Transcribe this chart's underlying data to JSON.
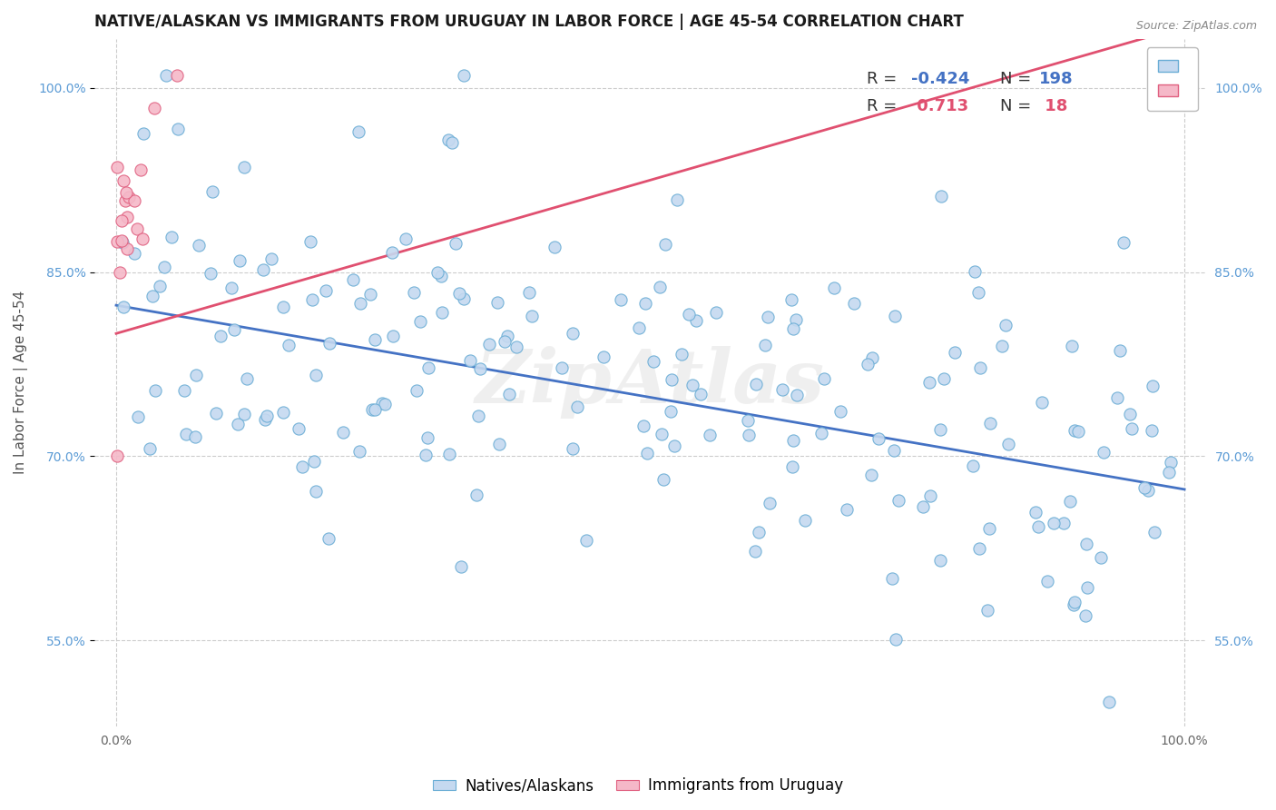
{
  "title": "NATIVE/ALASKAN VS IMMIGRANTS FROM URUGUAY IN LABOR FORCE | AGE 45-54 CORRELATION CHART",
  "source": "Source: ZipAtlas.com",
  "ylabel": "In Labor Force | Age 45-54",
  "R_blue": -0.424,
  "N_blue": 198,
  "R_pink": 0.713,
  "N_pink": 18,
  "legend_labels": [
    "Natives/Alaskans",
    "Immigrants from Uruguay"
  ],
  "blue_color": "#c5d9f0",
  "pink_color": "#f5b8c8",
  "blue_edge_color": "#6aadd5",
  "pink_edge_color": "#e06080",
  "blue_line_color": "#4472c4",
  "pink_line_color": "#e05070",
  "legend_R_blue_color": "#4472c4",
  "legend_R_pink_color": "#e05070",
  "legend_N_blue_color": "#222222",
  "legend_N_pink_color": "#222222",
  "xlim": [
    -0.02,
    1.02
  ],
  "ylim": [
    0.48,
    1.04
  ],
  "yticks": [
    0.55,
    0.7,
    0.85,
    1.0
  ],
  "ytick_labels": [
    "55.0%",
    "70.0%",
    "85.0%",
    "100.0%"
  ],
  "xticks": [
    0.0,
    1.0
  ],
  "xtick_labels": [
    "0.0%",
    "100.0%"
  ],
  "background_color": "#ffffff",
  "grid_color": "#cccccc",
  "watermark": "ZipAtlas",
  "blue_line_x": [
    0.0,
    1.0
  ],
  "blue_line_y": [
    0.823,
    0.673
  ],
  "pink_line_x": [
    0.0,
    1.0
  ],
  "pink_line_y": [
    0.8,
    1.05
  ]
}
